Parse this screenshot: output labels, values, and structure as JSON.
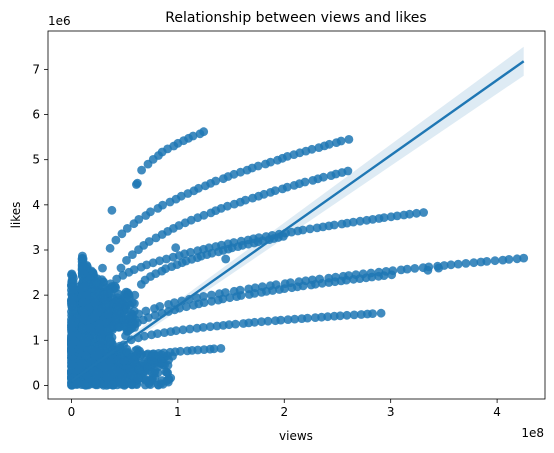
{
  "chart_data": {
    "type": "scatter",
    "title": "Relationship between views and likes",
    "xlabel": "views",
    "ylabel": "likes",
    "x_offset_label": "1e8",
    "y_offset_label": "1e6",
    "x_ticks": [
      {
        "value": 0,
        "label": "0"
      },
      {
        "value": 1,
        "label": "1"
      },
      {
        "value": 2,
        "label": "2"
      },
      {
        "value": 3,
        "label": "3"
      },
      {
        "value": 4,
        "label": "4"
      }
    ],
    "y_ticks": [
      {
        "value": 0,
        "label": "0"
      },
      {
        "value": 1,
        "label": "1"
      },
      {
        "value": 2,
        "label": "2"
      },
      {
        "value": 3,
        "label": "3"
      },
      {
        "value": 4,
        "label": "4"
      },
      {
        "value": 5,
        "label": "5"
      },
      {
        "value": 6,
        "label": "6"
      },
      {
        "value": 7,
        "label": "7"
      }
    ],
    "xlim": [
      -0.22,
      4.45
    ],
    "ylim": [
      -0.3,
      7.85
    ],
    "grid": false,
    "point_color": "#1f77b4",
    "regression": {
      "x_range": [
        0.0,
        4.25
      ],
      "y_at_start": 0.1,
      "y_at_end": 7.18,
      "ci_band_color": "#1f77b4",
      "ci_half_width_at_start": 0.04,
      "ci_half_width_at_end": 0.32
    },
    "clusters": [
      {
        "x": [
          0.0,
          0.62
        ],
        "y": [
          0.0,
          1.1
        ]
      },
      {
        "x": [
          0.0,
          0.95
        ],
        "y": [
          0.0,
          1.45
        ]
      },
      {
        "x": [
          0.0,
          0.4
        ],
        "y": [
          0.6,
          2.7
        ]
      },
      {
        "x": [
          0.1,
          0.6
        ],
        "y": [
          1.2,
          2.95
        ]
      }
    ],
    "trails": [
      {
        "x": [
          0.62,
          1.25
        ],
        "y": [
          4.45,
          5.62
        ],
        "count": 14
      },
      {
        "x": [
          0.3,
          2.6
        ],
        "y": [
          2.6,
          5.45
        ],
        "count": 42
      },
      {
        "x": [
          0.4,
          2.6
        ],
        "y": [
          2.2,
          4.75
        ],
        "count": 40
      },
      {
        "x": [
          0.3,
          3.3
        ],
        "y": [
          2.0,
          3.83
        ],
        "count": 52
      },
      {
        "x": [
          0.6,
          2.0
        ],
        "y": [
          2.0,
          3.3
        ],
        "count": 30
      },
      {
        "x": [
          0.5,
          4.25
        ],
        "y": [
          1.3,
          2.82
        ],
        "count": 56
      },
      {
        "x": [
          0.5,
          3.0
        ],
        "y": [
          1.1,
          2.45
        ],
        "count": 44
      },
      {
        "x": [
          0.5,
          2.9
        ],
        "y": [
          0.9,
          1.6
        ],
        "count": 40
      },
      {
        "x": [
          0.5,
          1.4
        ],
        "y": [
          0.55,
          0.82
        ],
        "count": 18
      }
    ],
    "points": [
      {
        "x": 0.38,
        "y": 3.88
      },
      {
        "x": 0.62,
        "y": 4.48
      },
      {
        "x": 0.98,
        "y": 3.05
      },
      {
        "x": 1.45,
        "y": 2.8
      },
      {
        "x": 3.35,
        "y": 2.55
      },
      {
        "x": 3.45,
        "y": 2.6
      }
    ]
  }
}
